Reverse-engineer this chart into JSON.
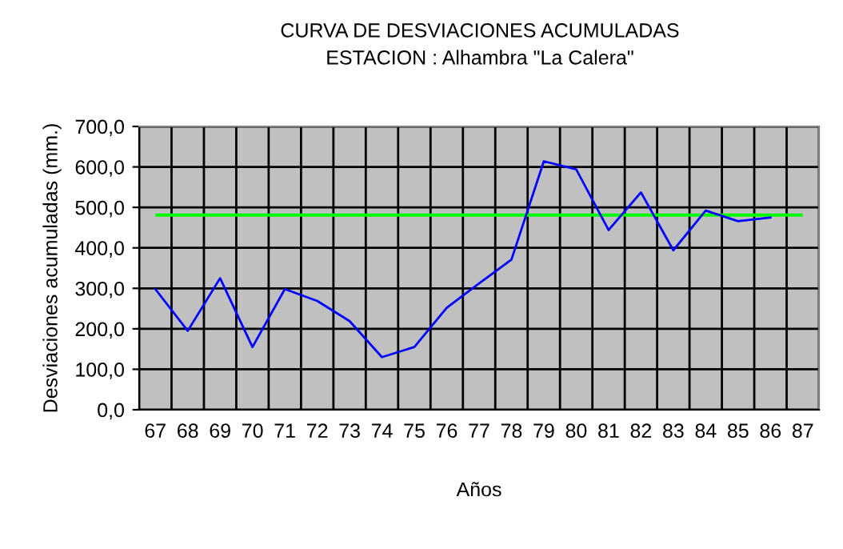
{
  "chart_data": {
    "type": "line",
    "title": "CURVA DE DESVIACIONES ACUMULADAS",
    "subtitle": "ESTACION : Alhambra \"La Calera\"",
    "xlabel": "Años",
    "ylabel": "Desviaciones acumuladas (mm.)",
    "categories": [
      "67",
      "68",
      "69",
      "70",
      "71",
      "72",
      "73",
      "74",
      "75",
      "76",
      "77",
      "78",
      "79",
      "80",
      "81",
      "82",
      "83",
      "84",
      "85",
      "86",
      "87"
    ],
    "series": [
      {
        "color": "#0000ff",
        "values": [
          298,
          195,
          325,
          155,
          298,
          269,
          219,
          130,
          155,
          252,
          312,
          371,
          614,
          594,
          444,
          537,
          394,
          492,
          466,
          475,
          null
        ]
      }
    ],
    "ylim": [
      0,
      700
    ],
    "yticks": [
      {
        "value": 0,
        "label": "0,0"
      },
      {
        "value": 100,
        "label": "100,0"
      },
      {
        "value": 200,
        "label": "200,0"
      },
      {
        "value": 300,
        "label": "300,0"
      },
      {
        "value": 400,
        "label": "400,0"
      },
      {
        "value": 500,
        "label": "500,0"
      },
      {
        "value": 600,
        "label": "600,0"
      },
      {
        "value": 700,
        "label": "700,0"
      }
    ],
    "ref_lines": [
      {
        "axis": "y",
        "value": 481,
        "color": "#00ff00"
      }
    ],
    "grid": true
  }
}
